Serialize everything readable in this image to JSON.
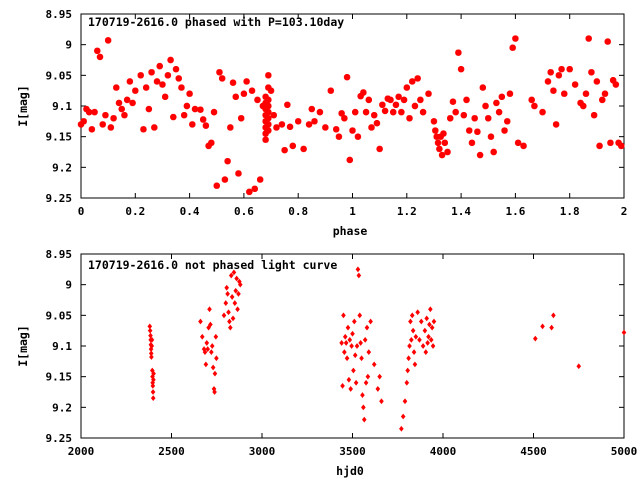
{
  "chart_data": [
    {
      "type": "scatter",
      "title": "170719-2616.0 phased with P=103.10day",
      "xlabel": "phase",
      "ylabel": "I[mag]",
      "xlim": [
        0,
        2
      ],
      "ylim": [
        9.25,
        8.95
      ],
      "y_inverted": true,
      "xticks": [
        0,
        0.2,
        0.4,
        0.6,
        0.8,
        1,
        1.2,
        1.4,
        1.6,
        1.8,
        2
      ],
      "xtick_labels": [
        "0",
        "0.2",
        "0.4",
        "0.6",
        "0.8",
        "1",
        "1.2",
        "1.4",
        "1.6",
        "1.8",
        "2"
      ],
      "yticks": [
        8.95,
        9,
        9.05,
        9.1,
        9.15,
        9.2,
        9.25
      ],
      "ytick_labels": [
        "8.95",
        "9",
        "9.05",
        "9.1",
        "9.15",
        "9.2",
        "9.25"
      ],
      "grid": false,
      "marker_color": "#ff0000",
      "marker": "star",
      "points": [
        [
          0.0,
          9.13
        ],
        [
          0.01,
          9.125
        ],
        [
          0.02,
          9.105
        ],
        [
          0.03,
          9.11
        ],
        [
          0.04,
          9.138
        ],
        [
          0.05,
          9.11
        ],
        [
          0.06,
          9.01
        ],
        [
          0.07,
          9.02
        ],
        [
          0.08,
          9.13
        ],
        [
          0.09,
          9.115
        ],
        [
          0.1,
          8.993
        ],
        [
          0.11,
          9.135
        ],
        [
          0.12,
          9.12
        ],
        [
          0.13,
          9.07
        ],
        [
          0.14,
          9.095
        ],
        [
          0.15,
          9.105
        ],
        [
          0.16,
          9.115
        ],
        [
          0.17,
          9.09
        ],
        [
          0.18,
          9.06
        ],
        [
          0.19,
          9.095
        ],
        [
          0.2,
          9.075
        ],
        [
          0.22,
          9.05
        ],
        [
          0.23,
          9.138
        ],
        [
          0.24,
          9.07
        ],
        [
          0.25,
          9.105
        ],
        [
          0.26,
          9.045
        ],
        [
          0.27,
          9.135
        ],
        [
          0.28,
          9.06
        ],
        [
          0.29,
          9.035
        ],
        [
          0.3,
          9.065
        ],
        [
          0.31,
          9.085
        ],
        [
          0.32,
          9.05
        ],
        [
          0.33,
          9.025
        ],
        [
          0.34,
          9.118
        ],
        [
          0.35,
          9.04
        ],
        [
          0.36,
          9.055
        ],
        [
          0.37,
          9.07
        ],
        [
          0.38,
          9.115
        ],
        [
          0.39,
          9.1
        ],
        [
          0.4,
          9.08
        ],
        [
          0.41,
          9.13
        ],
        [
          0.42,
          9.105
        ],
        [
          0.44,
          9.106
        ],
        [
          0.45,
          9.122
        ],
        [
          0.46,
          9.132
        ],
        [
          0.47,
          9.165
        ],
        [
          0.48,
          9.16
        ],
        [
          0.49,
          9.11
        ],
        [
          0.5,
          9.23
        ],
        [
          0.51,
          9.045
        ],
        [
          0.52,
          9.055
        ],
        [
          0.53,
          9.22
        ],
        [
          0.54,
          9.19
        ],
        [
          0.55,
          9.135
        ],
        [
          0.56,
          9.062
        ],
        [
          0.57,
          9.085
        ],
        [
          0.58,
          9.21
        ],
        [
          0.59,
          9.12
        ],
        [
          0.6,
          9.08
        ],
        [
          0.61,
          9.06
        ],
        [
          0.62,
          9.24
        ],
        [
          0.63,
          9.075
        ],
        [
          0.64,
          9.235
        ],
        [
          0.65,
          9.09
        ],
        [
          0.66,
          9.22
        ],
        [
          0.67,
          9.1
        ],
        [
          0.68,
          9.085
        ],
        [
          0.68,
          9.095
        ],
        [
          0.68,
          9.105
        ],
        [
          0.68,
          9.115
        ],
        [
          0.68,
          9.125
        ],
        [
          0.68,
          9.135
        ],
        [
          0.68,
          9.145
        ],
        [
          0.68,
          9.155
        ],
        [
          0.69,
          9.05
        ],
        [
          0.69,
          9.07
        ],
        [
          0.69,
          9.09
        ],
        [
          0.69,
          9.1
        ],
        [
          0.69,
          9.11
        ],
        [
          0.69,
          9.12
        ],
        [
          0.69,
          9.13
        ],
        [
          0.69,
          9.14
        ],
        [
          0.7,
          9.075
        ],
        [
          0.71,
          9.115
        ],
        [
          0.72,
          9.135
        ],
        [
          0.74,
          9.13
        ],
        [
          0.75,
          9.172
        ],
        [
          0.76,
          9.098
        ],
        [
          0.77,
          9.134
        ],
        [
          0.78,
          9.165
        ],
        [
          0.8,
          9.125
        ],
        [
          0.82,
          9.17
        ],
        [
          0.84,
          9.13
        ],
        [
          0.85,
          9.105
        ],
        [
          0.86,
          9.125
        ],
        [
          0.88,
          9.11
        ],
        [
          0.9,
          9.135
        ],
        [
          0.92,
          9.075
        ],
        [
          0.94,
          9.138
        ],
        [
          0.95,
          9.15
        ],
        [
          0.96,
          9.112
        ],
        [
          0.97,
          9.12
        ],
        [
          0.98,
          9.053
        ],
        [
          0.99,
          9.188
        ],
        [
          1.0,
          9.14
        ],
        [
          1.01,
          9.11
        ],
        [
          1.02,
          9.15
        ],
        [
          1.03,
          9.084
        ],
        [
          1.04,
          9.078
        ],
        [
          1.05,
          9.11
        ],
        [
          1.06,
          9.09
        ],
        [
          1.07,
          9.135
        ],
        [
          1.08,
          9.115
        ],
        [
          1.09,
          9.128
        ],
        [
          1.1,
          9.17
        ],
        [
          1.11,
          9.098
        ],
        [
          1.12,
          9.108
        ],
        [
          1.13,
          9.088
        ],
        [
          1.14,
          9.09
        ],
        [
          1.15,
          9.11
        ],
        [
          1.16,
          9.098
        ],
        [
          1.17,
          9.085
        ],
        [
          1.18,
          9.11
        ],
        [
          1.19,
          9.09
        ],
        [
          1.2,
          9.07
        ],
        [
          1.21,
          9.12
        ],
        [
          1.22,
          9.06
        ],
        [
          1.23,
          9.1
        ],
        [
          1.24,
          9.055
        ],
        [
          1.25,
          9.09
        ],
        [
          1.26,
          9.11
        ],
        [
          1.28,
          9.08
        ],
        [
          1.3,
          9.125
        ],
        [
          1.305,
          9.14
        ],
        [
          1.31,
          9.15
        ],
        [
          1.315,
          9.16
        ],
        [
          1.32,
          9.17
        ],
        [
          1.325,
          9.15
        ],
        [
          1.33,
          9.18
        ],
        [
          1.335,
          9.145
        ],
        [
          1.34,
          9.16
        ],
        [
          1.35,
          9.175
        ],
        [
          1.36,
          9.12
        ],
        [
          1.37,
          9.093
        ],
        [
          1.38,
          9.11
        ],
        [
          1.39,
          9.013
        ],
        [
          1.4,
          9.04
        ],
        [
          1.41,
          9.115
        ],
        [
          1.42,
          9.09
        ],
        [
          1.43,
          9.14
        ],
        [
          1.44,
          9.16
        ],
        [
          1.45,
          9.12
        ],
        [
          1.46,
          9.142
        ],
        [
          1.47,
          9.18
        ],
        [
          1.48,
          9.07
        ],
        [
          1.49,
          9.1
        ],
        [
          1.5,
          9.12
        ],
        [
          1.51,
          9.15
        ],
        [
          1.52,
          9.175
        ],
        [
          1.53,
          9.095
        ],
        [
          1.54,
          9.11
        ],
        [
          1.55,
          9.085
        ],
        [
          1.56,
          9.14
        ],
        [
          1.57,
          9.125
        ],
        [
          1.58,
          9.08
        ],
        [
          1.59,
          9.005
        ],
        [
          1.6,
          8.99
        ],
        [
          1.61,
          9.16
        ],
        [
          1.63,
          9.165
        ],
        [
          1.66,
          9.09
        ],
        [
          1.67,
          9.1
        ],
        [
          1.7,
          9.11
        ],
        [
          1.72,
          9.06
        ],
        [
          1.73,
          9.045
        ],
        [
          1.74,
          9.075
        ],
        [
          1.75,
          9.13
        ],
        [
          1.76,
          9.05
        ],
        [
          1.77,
          9.04
        ],
        [
          1.78,
          9.08
        ],
        [
          1.8,
          9.04
        ],
        [
          1.82,
          9.065
        ],
        [
          1.84,
          9.095
        ],
        [
          1.85,
          9.1
        ],
        [
          1.86,
          9.08
        ],
        [
          1.87,
          8.99
        ],
        [
          1.88,
          9.045
        ],
        [
          1.89,
          9.115
        ],
        [
          1.9,
          9.06
        ],
        [
          1.91,
          9.165
        ],
        [
          1.92,
          9.09
        ],
        [
          1.93,
          9.08
        ],
        [
          1.94,
          8.995
        ],
        [
          1.95,
          9.16
        ],
        [
          1.96,
          9.058
        ],
        [
          1.97,
          9.065
        ],
        [
          1.98,
          9.16
        ],
        [
          1.99,
          9.165
        ]
      ]
    },
    {
      "type": "scatter",
      "title": "170719-2616.0 not phased light curve",
      "xlabel": "hjd0",
      "ylabel": "I[mag]",
      "xlim": [
        2000,
        5000
      ],
      "ylim": [
        9.25,
        8.95
      ],
      "y_inverted": true,
      "xticks": [
        2000,
        2500,
        3000,
        3500,
        4000,
        4500,
        5000
      ],
      "xtick_labels": [
        "2000",
        "2500",
        "3000",
        "3500",
        "4000",
        "4500",
        "5000"
      ],
      "yticks": [
        8.95,
        9,
        9.05,
        9.1,
        9.15,
        9.2,
        9.25
      ],
      "ytick_labels": [
        "8.95",
        "9",
        "9.05",
        "9.1",
        "9.15",
        "9.2",
        "9.25"
      ],
      "grid": false,
      "marker_color": "#ff0000",
      "marker": "diamond",
      "points": [
        [
          2380,
          9.068
        ],
        [
          2382,
          9.075
        ],
        [
          2384,
          9.083
        ],
        [
          2385,
          9.09
        ],
        [
          2386,
          9.098
        ],
        [
          2387,
          9.105
        ],
        [
          2388,
          9.112
        ],
        [
          2389,
          9.118
        ],
        [
          2391,
          9.1
        ],
        [
          2392,
          9.09
        ],
        [
          2394,
          9.14
        ],
        [
          2395,
          9.15
        ],
        [
          2396,
          9.16
        ],
        [
          2397,
          9.165
        ],
        [
          2398,
          9.175
        ],
        [
          2399,
          9.185
        ],
        [
          2400,
          9.155
        ],
        [
          2401,
          9.145
        ],
        [
          2660,
          9.06
        ],
        [
          2670,
          9.085
        ],
        [
          2680,
          9.105
        ],
        [
          2685,
          9.11
        ],
        [
          2690,
          9.13
        ],
        [
          2695,
          9.095
        ],
        [
          2700,
          9.105
        ],
        [
          2705,
          9.07
        ],
        [
          2710,
          9.04
        ],
        [
          2715,
          9.065
        ],
        [
          2720,
          9.11
        ],
        [
          2725,
          9.1
        ],
        [
          2730,
          9.135
        ],
        [
          2735,
          9.17
        ],
        [
          2738,
          9.175
        ],
        [
          2740,
          9.145
        ],
        [
          2745,
          9.085
        ],
        [
          2748,
          9.12
        ],
        [
          2790,
          9.05
        ],
        [
          2800,
          9.03
        ],
        [
          2805,
          9.005
        ],
        [
          2810,
          9.015
        ],
        [
          2815,
          9.045
        ],
        [
          2820,
          9.06
        ],
        [
          2825,
          9.07
        ],
        [
          2830,
          8.985
        ],
        [
          2835,
          9.02
        ],
        [
          2840,
          9.055
        ],
        [
          2845,
          8.98
        ],
        [
          2850,
          9.03
        ],
        [
          2855,
          9.01
        ],
        [
          2860,
          8.99
        ],
        [
          2865,
          9.04
        ],
        [
          2870,
          9.015
        ],
        [
          2875,
          8.995
        ],
        [
          2880,
          9.0
        ],
        [
          3440,
          9.095
        ],
        [
          3445,
          9.165
        ],
        [
          3450,
          9.05
        ],
        [
          3455,
          9.11
        ],
        [
          3460,
          9.085
        ],
        [
          3465,
          9.095
        ],
        [
          3470,
          9.12
        ],
        [
          3475,
          9.07
        ],
        [
          3480,
          9.155
        ],
        [
          3485,
          9.09
        ],
        [
          3490,
          9.17
        ],
        [
          3495,
          9.1
        ],
        [
          3500,
          9.08
        ],
        [
          3505,
          9.14
        ],
        [
          3510,
          9.06
        ],
        [
          3515,
          9.115
        ],
        [
          3520,
          9.16
        ],
        [
          3525,
          9.1
        ],
        [
          3530,
          8.975
        ],
        [
          3535,
          8.985
        ],
        [
          3540,
          9.05
        ],
        [
          3545,
          9.095
        ],
        [
          3550,
          9.12
        ],
        [
          3555,
          9.18
        ],
        [
          3560,
          9.2
        ],
        [
          3565,
          9.22
        ],
        [
          3570,
          9.09
        ],
        [
          3575,
          9.16
        ],
        [
          3580,
          9.07
        ],
        [
          3585,
          9.15
        ],
        [
          3590,
          9.11
        ],
        [
          3600,
          9.06
        ],
        [
          3620,
          9.13
        ],
        [
          3640,
          9.17
        ],
        [
          3650,
          9.15
        ],
        [
          3660,
          9.19
        ],
        [
          3770,
          9.235
        ],
        [
          3780,
          9.215
        ],
        [
          3790,
          9.19
        ],
        [
          3800,
          9.16
        ],
        [
          3805,
          9.14
        ],
        [
          3810,
          9.12
        ],
        [
          3815,
          9.1
        ],
        [
          3820,
          9.06
        ],
        [
          3825,
          9.09
        ],
        [
          3830,
          9.05
        ],
        [
          3835,
          9.075
        ],
        [
          3840,
          9.11
        ],
        [
          3845,
          9.13
        ],
        [
          3850,
          9.085
        ],
        [
          3860,
          9.045
        ],
        [
          3870,
          9.09
        ],
        [
          3880,
          9.06
        ],
        [
          3890,
          9.1
        ],
        [
          3900,
          9.075
        ],
        [
          3905,
          9.11
        ],
        [
          3910,
          9.055
        ],
        [
          3915,
          9.095
        ],
        [
          3920,
          9.085
        ],
        [
          3925,
          9.065
        ],
        [
          3930,
          9.04
        ],
        [
          3935,
          9.09
        ],
        [
          3940,
          9.07
        ],
        [
          3945,
          9.1
        ],
        [
          3950,
          9.06
        ],
        [
          4510,
          9.088
        ],
        [
          4550,
          9.068
        ],
        [
          4600,
          9.07
        ],
        [
          4610,
          9.05
        ],
        [
          4750,
          9.133
        ],
        [
          5000,
          9.078
        ]
      ]
    }
  ]
}
